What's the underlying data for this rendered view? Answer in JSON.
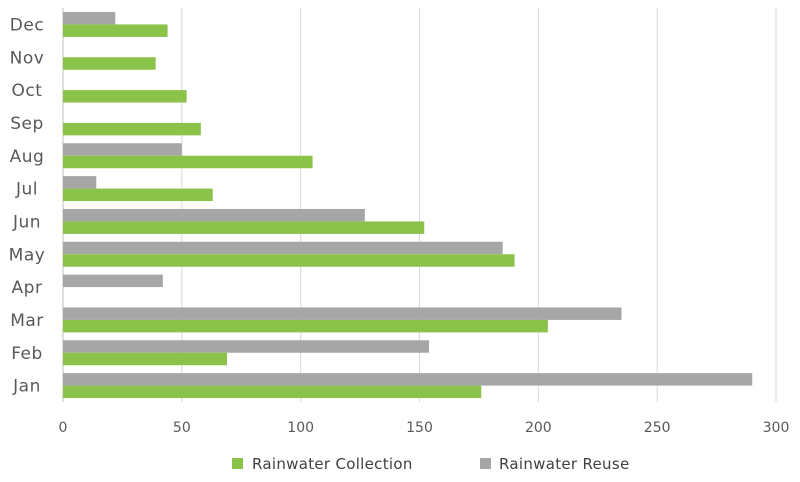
{
  "chart_data": {
    "type": "bar",
    "orientation": "horizontal",
    "categories": [
      "Jan",
      "Feb",
      "Mar",
      "Apr",
      "May",
      "Jun",
      "Jul",
      "Aug",
      "Sep",
      "Oct",
      "Nov",
      "Dec"
    ],
    "series": [
      {
        "name": "Rainwater Collection",
        "color": "#8bc34a",
        "values": [
          176,
          69,
          204,
          0,
          190,
          152,
          63,
          105,
          58,
          52,
          39,
          44
        ]
      },
      {
        "name": "Rainwater Reuse",
        "color": "#a6a6a6",
        "values": [
          290,
          154,
          235,
          42,
          185,
          127,
          14,
          50,
          0,
          0,
          0,
          22
        ]
      }
    ],
    "xlim": [
      0,
      300
    ],
    "xticks": [
      0,
      50,
      100,
      150,
      200,
      250,
      300
    ],
    "grid": true,
    "legend_position": "bottom"
  }
}
